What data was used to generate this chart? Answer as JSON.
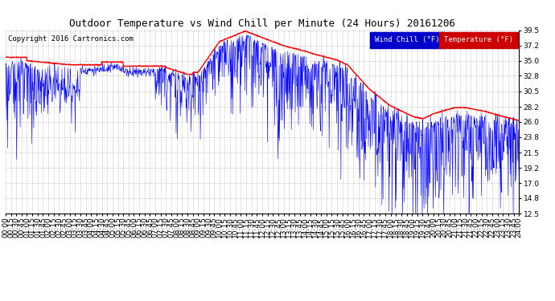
{
  "title": "Outdoor Temperature vs Wind Chill per Minute (24 Hours) 20161206",
  "copyright": "Copyright 2016 Cartronics.com",
  "ylim": [
    12.5,
    39.5
  ],
  "yticks": [
    12.5,
    14.8,
    17.0,
    19.2,
    21.5,
    23.8,
    26.0,
    28.2,
    30.5,
    32.8,
    35.0,
    37.2,
    39.5
  ],
  "legend_wind_chill": "Wind Chill (°F)",
  "legend_temperature": "Temperature (°F)",
  "wind_chill_color": "#0000FF",
  "temperature_color": "#FF0000",
  "background_color": "#FFFFFF",
  "grid_color": "#AAAAAA",
  "title_fontsize": 9,
  "copyright_fontsize": 6.5,
  "tick_fontsize": 6.5,
  "legend_fontsize": 6.5,
  "legend_bg_wind": "#0000CC",
  "legend_bg_temp": "#CC0000"
}
